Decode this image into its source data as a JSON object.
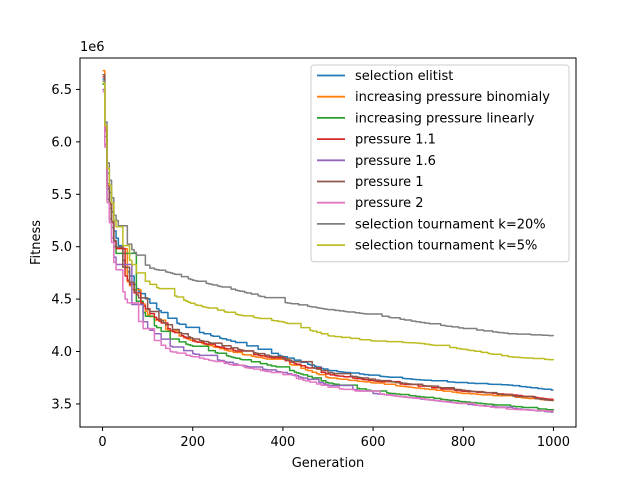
{
  "chart_data": {
    "type": "line",
    "title": "",
    "xlabel": "Generation",
    "ylabel": "Fitness",
    "y_offset_label": "1e6",
    "xlim": [
      -50,
      1050
    ],
    "ylim": [
      3.28,
      6.8
    ],
    "xticks": [
      0,
      200,
      400,
      600,
      800,
      1000
    ],
    "xtick_labels": [
      "0",
      "200",
      "400",
      "600",
      "800",
      "1000"
    ],
    "yticks": [
      3.5,
      4.0,
      4.5,
      5.0,
      5.5,
      6.0,
      6.5
    ],
    "ytick_labels": [
      "3.5",
      "4.0",
      "4.5",
      "5.0",
      "5.5",
      "6.0",
      "6.5"
    ],
    "grid": false,
    "legend_position": "top-right",
    "x": [
      0,
      10,
      25,
      50,
      75,
      100,
      150,
      200,
      300,
      400,
      500,
      600,
      700,
      800,
      900,
      1000
    ],
    "series": [
      {
        "name": "selection elitist",
        "color": "#1f77b4",
        "values": [
          6.6,
          5.7,
          5.15,
          4.8,
          4.6,
          4.48,
          4.3,
          4.2,
          4.08,
          3.95,
          3.82,
          3.77,
          3.73,
          3.7,
          3.68,
          3.63
        ]
      },
      {
        "name": "increasing pressure binomialy",
        "color": "#ff7f0e",
        "values": [
          6.68,
          5.6,
          5.05,
          4.7,
          4.52,
          4.35,
          4.18,
          4.1,
          3.98,
          3.9,
          3.75,
          3.7,
          3.65,
          3.6,
          3.57,
          3.53
        ]
      },
      {
        "name": "increasing pressure linearly",
        "color": "#2ca02c",
        "values": [
          6.55,
          5.55,
          5.0,
          4.68,
          4.48,
          4.3,
          4.12,
          4.05,
          3.93,
          3.84,
          3.7,
          3.62,
          3.57,
          3.52,
          3.48,
          3.44
        ]
      },
      {
        "name": "pressure 1.1",
        "color": "#d62728",
        "values": [
          6.62,
          5.58,
          5.05,
          4.72,
          4.52,
          4.38,
          4.2,
          4.1,
          4.0,
          3.92,
          3.78,
          3.72,
          3.67,
          3.62,
          3.59,
          3.54
        ]
      },
      {
        "name": "pressure 1.6",
        "color": "#9467bd",
        "values": [
          6.5,
          5.45,
          4.9,
          4.55,
          4.38,
          4.22,
          4.05,
          3.98,
          3.87,
          3.8,
          3.68,
          3.6,
          3.55,
          3.5,
          3.46,
          3.42
        ]
      },
      {
        "name": "pressure 1",
        "color": "#8c564b",
        "values": [
          6.64,
          5.6,
          5.06,
          4.74,
          4.54,
          4.4,
          4.22,
          4.12,
          4.02,
          3.93,
          3.8,
          3.73,
          3.68,
          3.63,
          3.58,
          3.53
        ]
      },
      {
        "name": "pressure 2",
        "color": "#e377c2",
        "values": [
          6.48,
          5.42,
          4.85,
          4.5,
          4.32,
          4.15,
          4.0,
          3.95,
          3.86,
          3.78,
          3.66,
          3.6,
          3.55,
          3.5,
          3.45,
          3.43
        ]
      },
      {
        "name": "selection tournament k=20%",
        "color": "#7f7f7f",
        "values": [
          6.58,
          5.8,
          5.3,
          5.05,
          4.92,
          4.8,
          4.75,
          4.68,
          4.58,
          4.47,
          4.4,
          4.35,
          4.28,
          4.22,
          4.17,
          4.15
        ]
      },
      {
        "name": "selection tournament k=5%",
        "color": "#bcbd22",
        "values": [
          6.56,
          5.75,
          5.25,
          4.95,
          4.75,
          4.65,
          4.55,
          4.45,
          4.35,
          4.28,
          4.15,
          4.1,
          4.08,
          4.02,
          3.95,
          3.92
        ]
      }
    ]
  }
}
